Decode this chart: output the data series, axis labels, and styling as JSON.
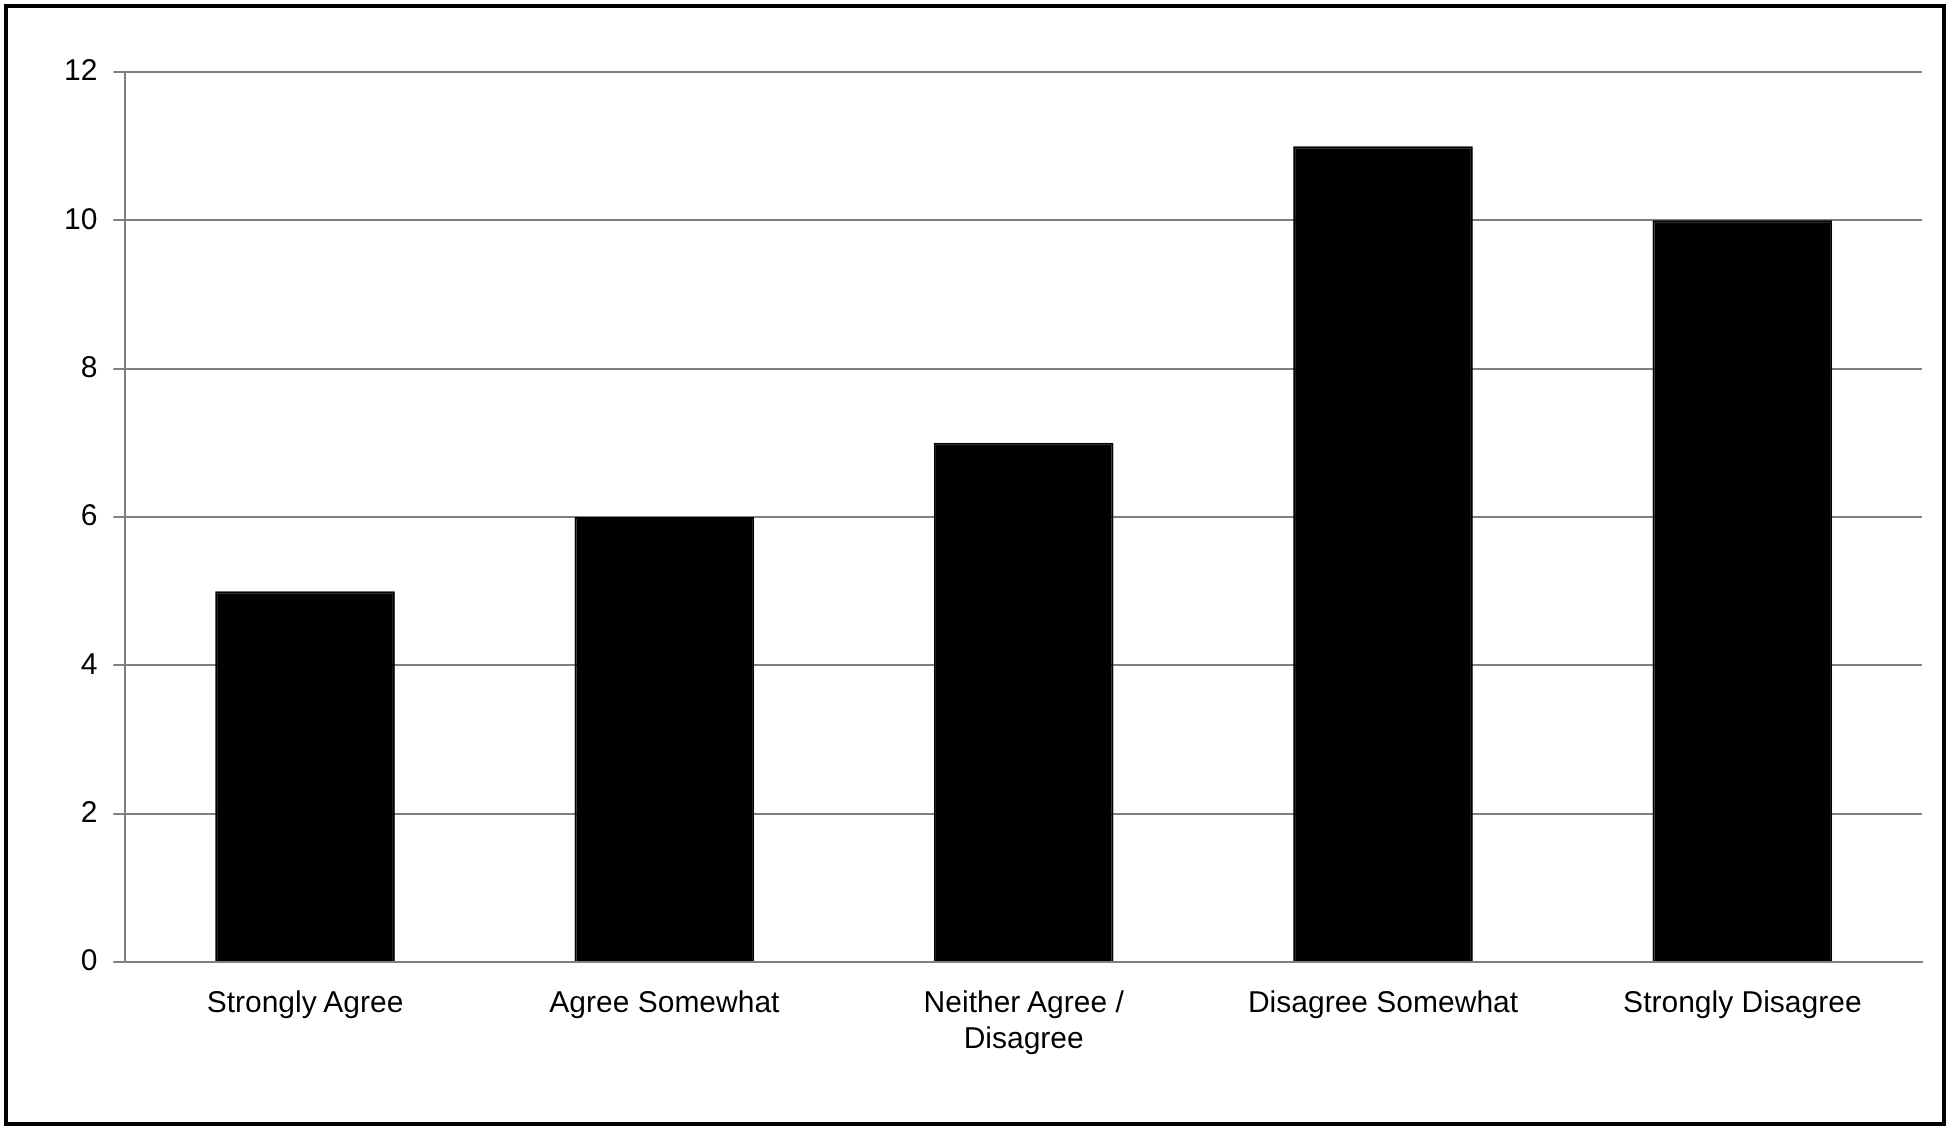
{
  "chart_data": {
    "type": "bar",
    "categories": [
      "Strongly Agree",
      "Agree Somewhat",
      "Neither Agree / Disagree",
      "Disagree Somewhat",
      "Strongly Disagree"
    ],
    "values": [
      5,
      6,
      7,
      11,
      10
    ],
    "color": "#000000",
    "ylim": [
      0,
      12
    ],
    "yticks": [
      0,
      2,
      4,
      6,
      8,
      10,
      12
    ],
    "grid": "y",
    "legend": false
  }
}
